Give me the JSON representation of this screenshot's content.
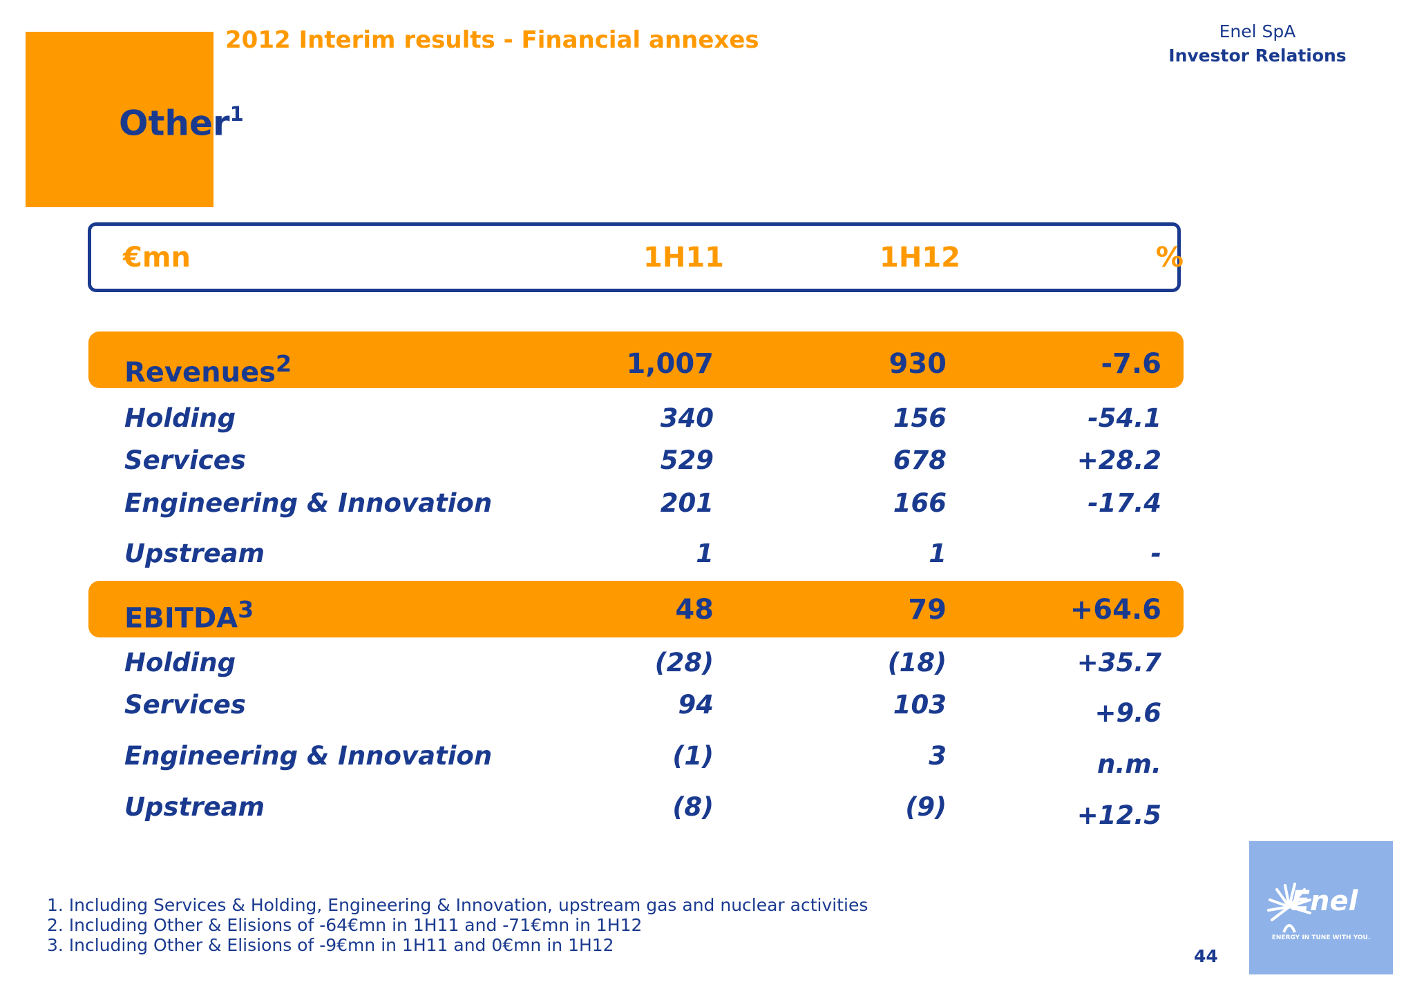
{
  "header": {
    "title": "2012 Interim results - Financial annexes",
    "company": "Enel SpA",
    "department": "Investor Relations"
  },
  "page": {
    "heading": "Other",
    "heading_sup": "1",
    "number": "44"
  },
  "table": {
    "columns": [
      "€mn",
      "1H11",
      "1H12",
      "%"
    ],
    "rows": [
      {
        "label": "Revenues",
        "sup": "2",
        "v1": "1,007",
        "v2": "930",
        "pct": "-7.6",
        "highlight": true
      },
      {
        "label": "Holding",
        "v1": "340",
        "v2": "156",
        "pct": "-54.1"
      },
      {
        "label": "Services",
        "v1": "529",
        "v2": "678",
        "pct": "+28.2"
      },
      {
        "label": "Engineering & Innovation",
        "v1": "201",
        "v2": "166",
        "pct": "-17.4"
      },
      {
        "label": "Upstream",
        "v1": "1",
        "v2": "1",
        "pct": "-"
      },
      {
        "label": "EBITDA",
        "sup": "3",
        "v1": "48",
        "v2": "79",
        "pct": "+64.6",
        "highlight": true
      },
      {
        "label": "Holding",
        "v1": "(28)",
        "v2": "(18)",
        "pct": "+35.7"
      },
      {
        "label": "Services",
        "v1": "94",
        "v2": "103",
        "pct": "+9.6"
      },
      {
        "label": "Engineering & Innovation",
        "v1": "(1)",
        "v2": "3",
        "pct": "n.m."
      },
      {
        "label": "Upstream",
        "v1": "(8)",
        "v2": "(9)",
        "pct": "+12.5"
      }
    ]
  },
  "footnotes": [
    "1. Including Services & Holding, Engineering & Innovation, upstream gas and nuclear activities",
    "2. Including Other & Elisions of -64€mn in 1H11 and -71€mn in 1H12",
    "3. Including Other & Elisions of -9€mn in 1H11 and 0€mn in 1H12"
  ],
  "logo": {
    "name": "Enel",
    "tagline": "ENERGY IN TUNE WITH YOU."
  },
  "colors": {
    "brand_orange": "#ff9900",
    "brand_blue": "#1a3a8f",
    "logo_bg": "#8fb2e8"
  }
}
